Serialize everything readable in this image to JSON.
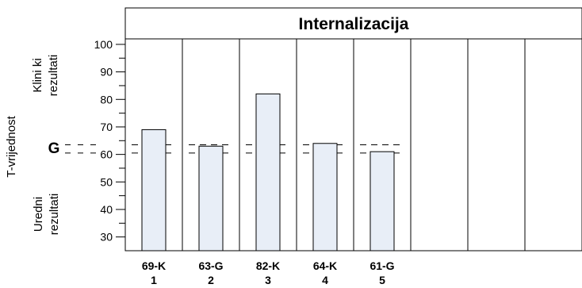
{
  "chart_data": {
    "type": "bar",
    "title": "Internalizacija",
    "ylabel": "T-vrijednost",
    "ylim": [
      25,
      102
    ],
    "y_ticks": [
      30,
      40,
      50,
      60,
      70,
      80,
      90,
      100
    ],
    "y_tick_labels": [
      "30",
      "40",
      "50",
      "60",
      "70",
      "80",
      "90",
      "100"
    ],
    "top_region_label": [
      "Klini ki",
      "rezultati"
    ],
    "bottom_region_label": [
      "Uredni",
      "rezultati"
    ],
    "reference_marker": "G",
    "reference_lines": [
      60.5,
      63.5
    ],
    "slots": 8,
    "categories": [
      "69-K",
      "63-G",
      "82-K",
      "64-K",
      "61-G"
    ],
    "category_numbers": [
      "1",
      "2",
      "3",
      "4",
      "5"
    ],
    "values": [
      69,
      63,
      82,
      64,
      61
    ],
    "colors": {
      "bar_fill": "#e8eef7",
      "line": "#000000"
    }
  }
}
